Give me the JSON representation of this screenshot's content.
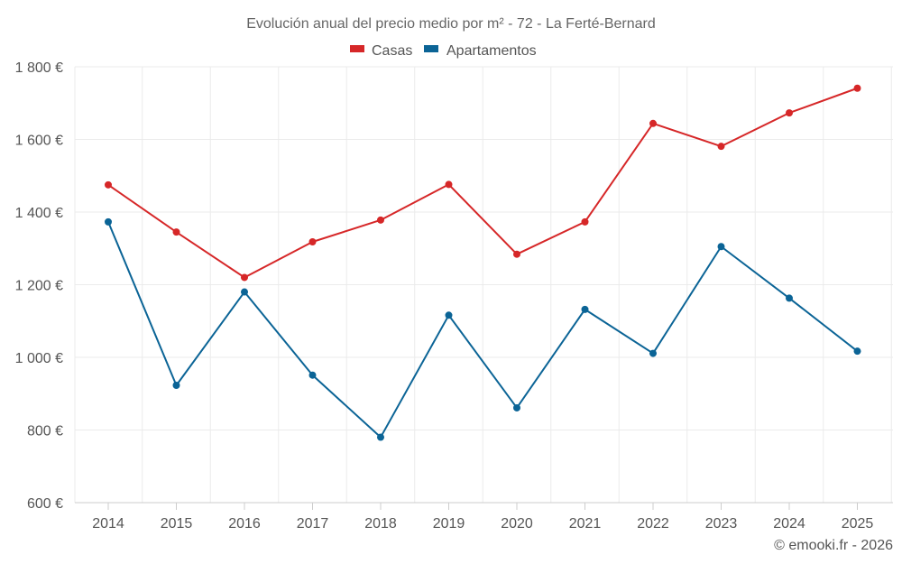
{
  "chart_data": {
    "type": "line",
    "title": "Evolución anual del precio medio por m² - 72 - La Ferté-Bernard",
    "categories": [
      "2014",
      "2015",
      "2016",
      "2017",
      "2018",
      "2019",
      "2020",
      "2021",
      "2022",
      "2023",
      "2024",
      "2025"
    ],
    "series": [
      {
        "name": "Casas",
        "color": "#d62728",
        "values": [
          1475,
          1345,
          1220,
          1318,
          1378,
          1476,
          1284,
          1373,
          1644,
          1581,
          1673,
          1741
        ]
      },
      {
        "name": "Apartamentos",
        "color": "#0b6496",
        "values": [
          1373,
          923,
          1180,
          951,
          780,
          1116,
          861,
          1132,
          1011,
          1305,
          1163,
          1017
        ]
      }
    ],
    "yticks": [
      600,
      800,
      1000,
      1200,
      1400,
      1600,
      1800
    ],
    "ytick_labels": [
      "600 €",
      "800 €",
      "1 000 €",
      "1 200 €",
      "1 400 €",
      "1 600 €",
      "1 800 €"
    ],
    "ylim": [
      600,
      1800
    ],
    "xlabel": "",
    "ylabel": "",
    "grid": true,
    "legend": "top-center"
  },
  "credit": "© emooki.fr - 2026"
}
